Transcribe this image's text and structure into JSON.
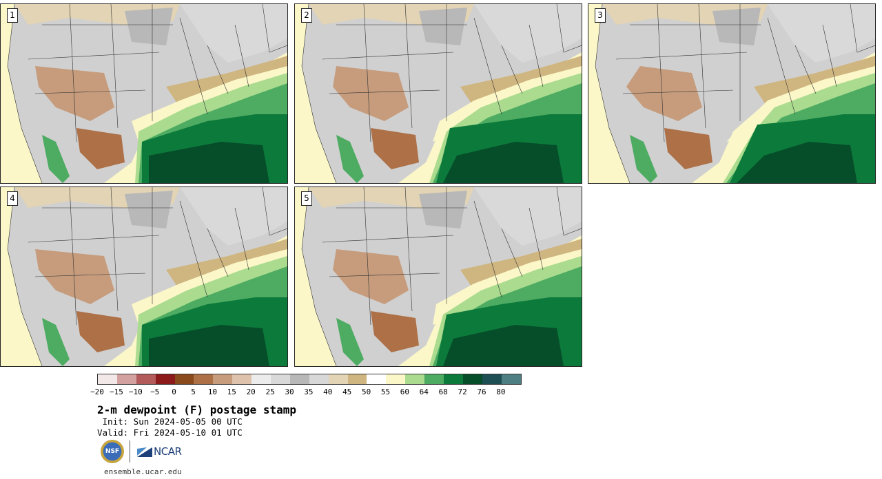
{
  "panels": [
    {
      "label": "1"
    },
    {
      "label": "2"
    },
    {
      "label": "3"
    },
    {
      "label": "4"
    },
    {
      "label": "5"
    }
  ],
  "colorbar": {
    "colors": [
      "#f2e8e8",
      "#d4a1a1",
      "#b35a5a",
      "#8c1a1a",
      "#8b4a1b",
      "#ad7047",
      "#c69c7c",
      "#dfc2ac",
      "#ececec",
      "#d9d9d9",
      "#b8b8b8",
      "#d8d8d8",
      "#e2d4b4",
      "#cfb57f",
      "#ffffff",
      "#fbf7c8",
      "#aadb8e",
      "#4dab62",
      "#0b7a3a",
      "#064d2a",
      "#1e4f55",
      "#4e7f82"
    ],
    "tick_labels": [
      "−20",
      "−15",
      "−10",
      "−5",
      "0",
      "5",
      "10",
      "15",
      "20",
      "25",
      "30",
      "35",
      "40",
      "45",
      "50",
      "55",
      "60",
      "64",
      "68",
      "72",
      "76",
      "80"
    ]
  },
  "title": "2-m dewpoint (F) postage stamp",
  "init": " Init: Sun 2024-05-05 00 UTC",
  "valid": "Valid: Fri 2024-05-10 01 UTC",
  "logos": {
    "nsf": "NSF",
    "ncar": "NCAR"
  },
  "url": "ensemble.ucar.edu"
}
